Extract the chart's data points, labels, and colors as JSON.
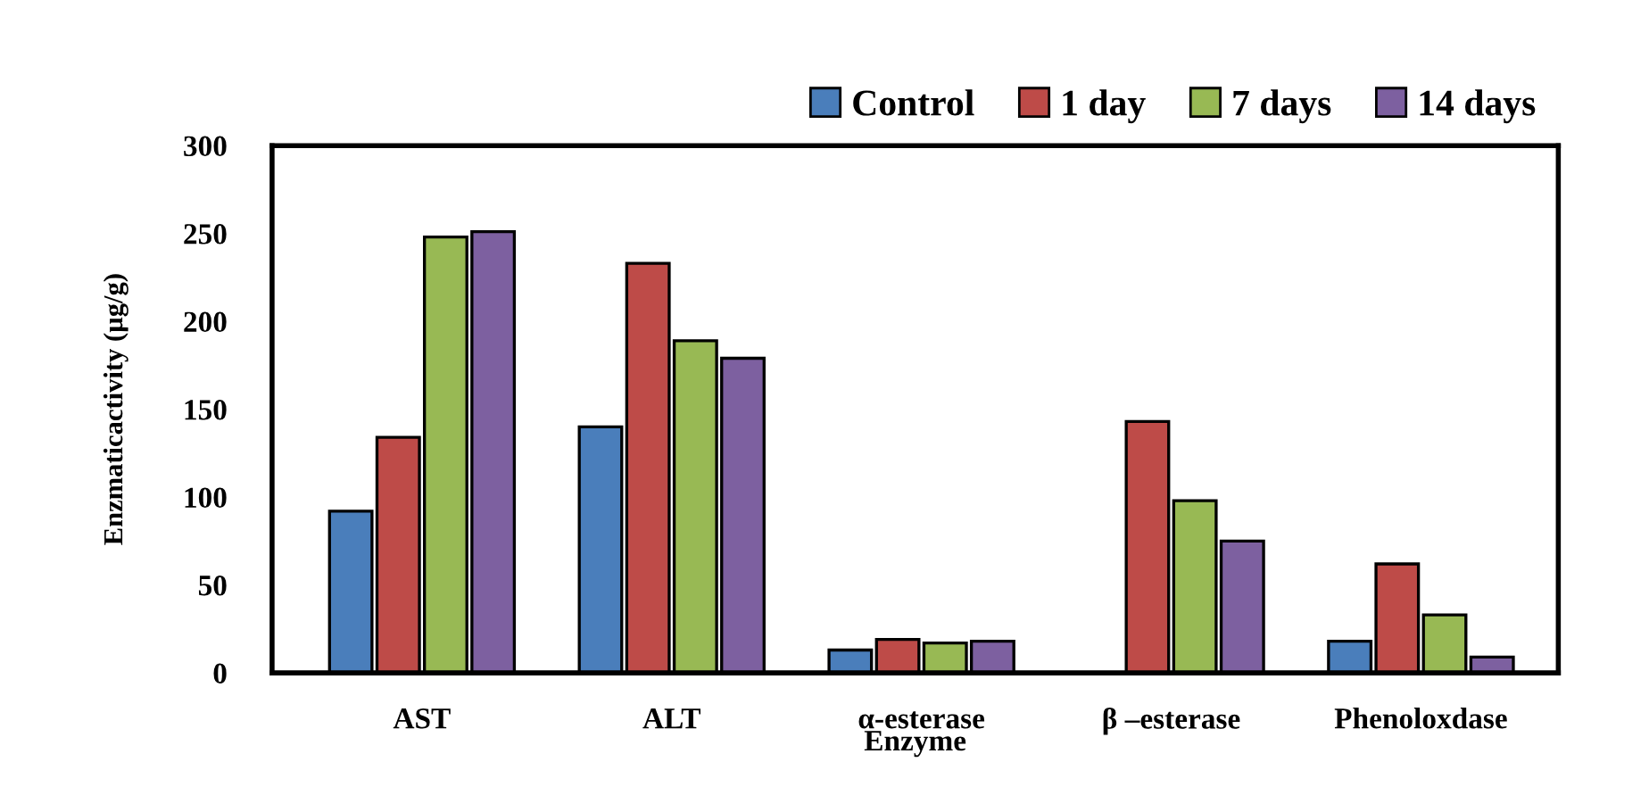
{
  "chart_data": {
    "type": "bar",
    "xlabel": "Enzyme",
    "ylabel": "Enzmaticactivity (µg/g)",
    "categories": [
      "AST",
      "ALT",
      "α-esterase",
      "β –esterase",
      "Phenoloxdase"
    ],
    "series": [
      {
        "name": "Control",
        "color": "#4a7ebb",
        "values": [
          92,
          140,
          13,
          null,
          18
        ]
      },
      {
        "name": "1 day",
        "color": "#be4b48",
        "values": [
          134,
          233,
          19,
          143,
          62
        ]
      },
      {
        "name": "7 days",
        "color": "#98b954",
        "values": [
          248,
          189,
          17,
          98,
          33
        ]
      },
      {
        "name": "14 days",
        "color": "#7d60a0",
        "values": [
          251,
          179,
          18,
          75,
          9
        ]
      }
    ],
    "ylim": [
      0,
      300
    ],
    "yticks": [
      0,
      50,
      100,
      150,
      200,
      250,
      300
    ],
    "grid": false,
    "legend": "top right"
  }
}
